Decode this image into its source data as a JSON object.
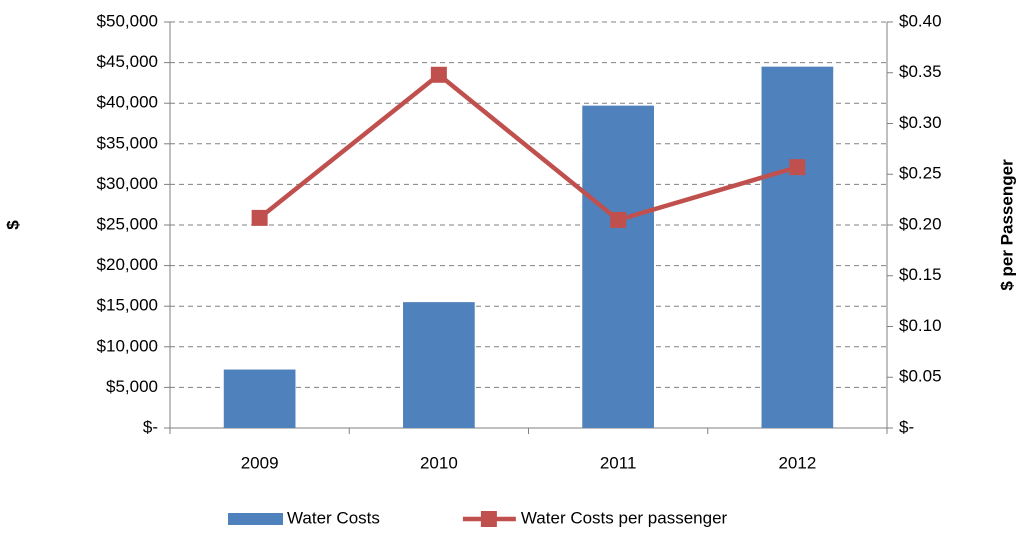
{
  "chart_data": {
    "type": "combo",
    "categories": [
      "2009",
      "2010",
      "2011",
      "2012"
    ],
    "series": [
      {
        "name": "Water Costs",
        "type": "bar",
        "color": "#4f81bd",
        "values": [
          7200,
          15500,
          39700,
          44500
        ]
      },
      {
        "name": "Water Costs per passenger",
        "type": "line",
        "axis": "y2",
        "color": "#c0504d",
        "values": [
          0.207,
          0.348,
          0.205,
          0.257
        ]
      }
    ],
    "ylabel": "$",
    "y2label": "$ per Passenger",
    "ylim": [
      0,
      50000
    ],
    "yticks": [
      {
        "value": 0,
        "label": "$-"
      },
      {
        "value": 5000,
        "label": "$5,000"
      },
      {
        "value": 10000,
        "label": "$10,000"
      },
      {
        "value": 15000,
        "label": "$15,000"
      },
      {
        "value": 20000,
        "label": "$20,000"
      },
      {
        "value": 25000,
        "label": "$25,000"
      },
      {
        "value": 30000,
        "label": "$30,000"
      },
      {
        "value": 35000,
        "label": "$35,000"
      },
      {
        "value": 40000,
        "label": "$40,000"
      },
      {
        "value": 45000,
        "label": "$45,000"
      },
      {
        "value": 50000,
        "label": "$50,000"
      }
    ],
    "y2lim": [
      0,
      0.4
    ],
    "y2ticks": [
      {
        "value": 0,
        "label": "$-"
      },
      {
        "value": 0.05,
        "label": "$0.05"
      },
      {
        "value": 0.1,
        "label": "$0.10"
      },
      {
        "value": 0.15,
        "label": "$0.15"
      },
      {
        "value": 0.2,
        "label": "$0.20"
      },
      {
        "value": 0.25,
        "label": "$0.25"
      },
      {
        "value": 0.3,
        "label": "$0.30"
      },
      {
        "value": 0.35,
        "label": "$0.35"
      },
      {
        "value": 0.4,
        "label": "$0.40"
      }
    ],
    "grid": true,
    "legend": "bottom"
  }
}
